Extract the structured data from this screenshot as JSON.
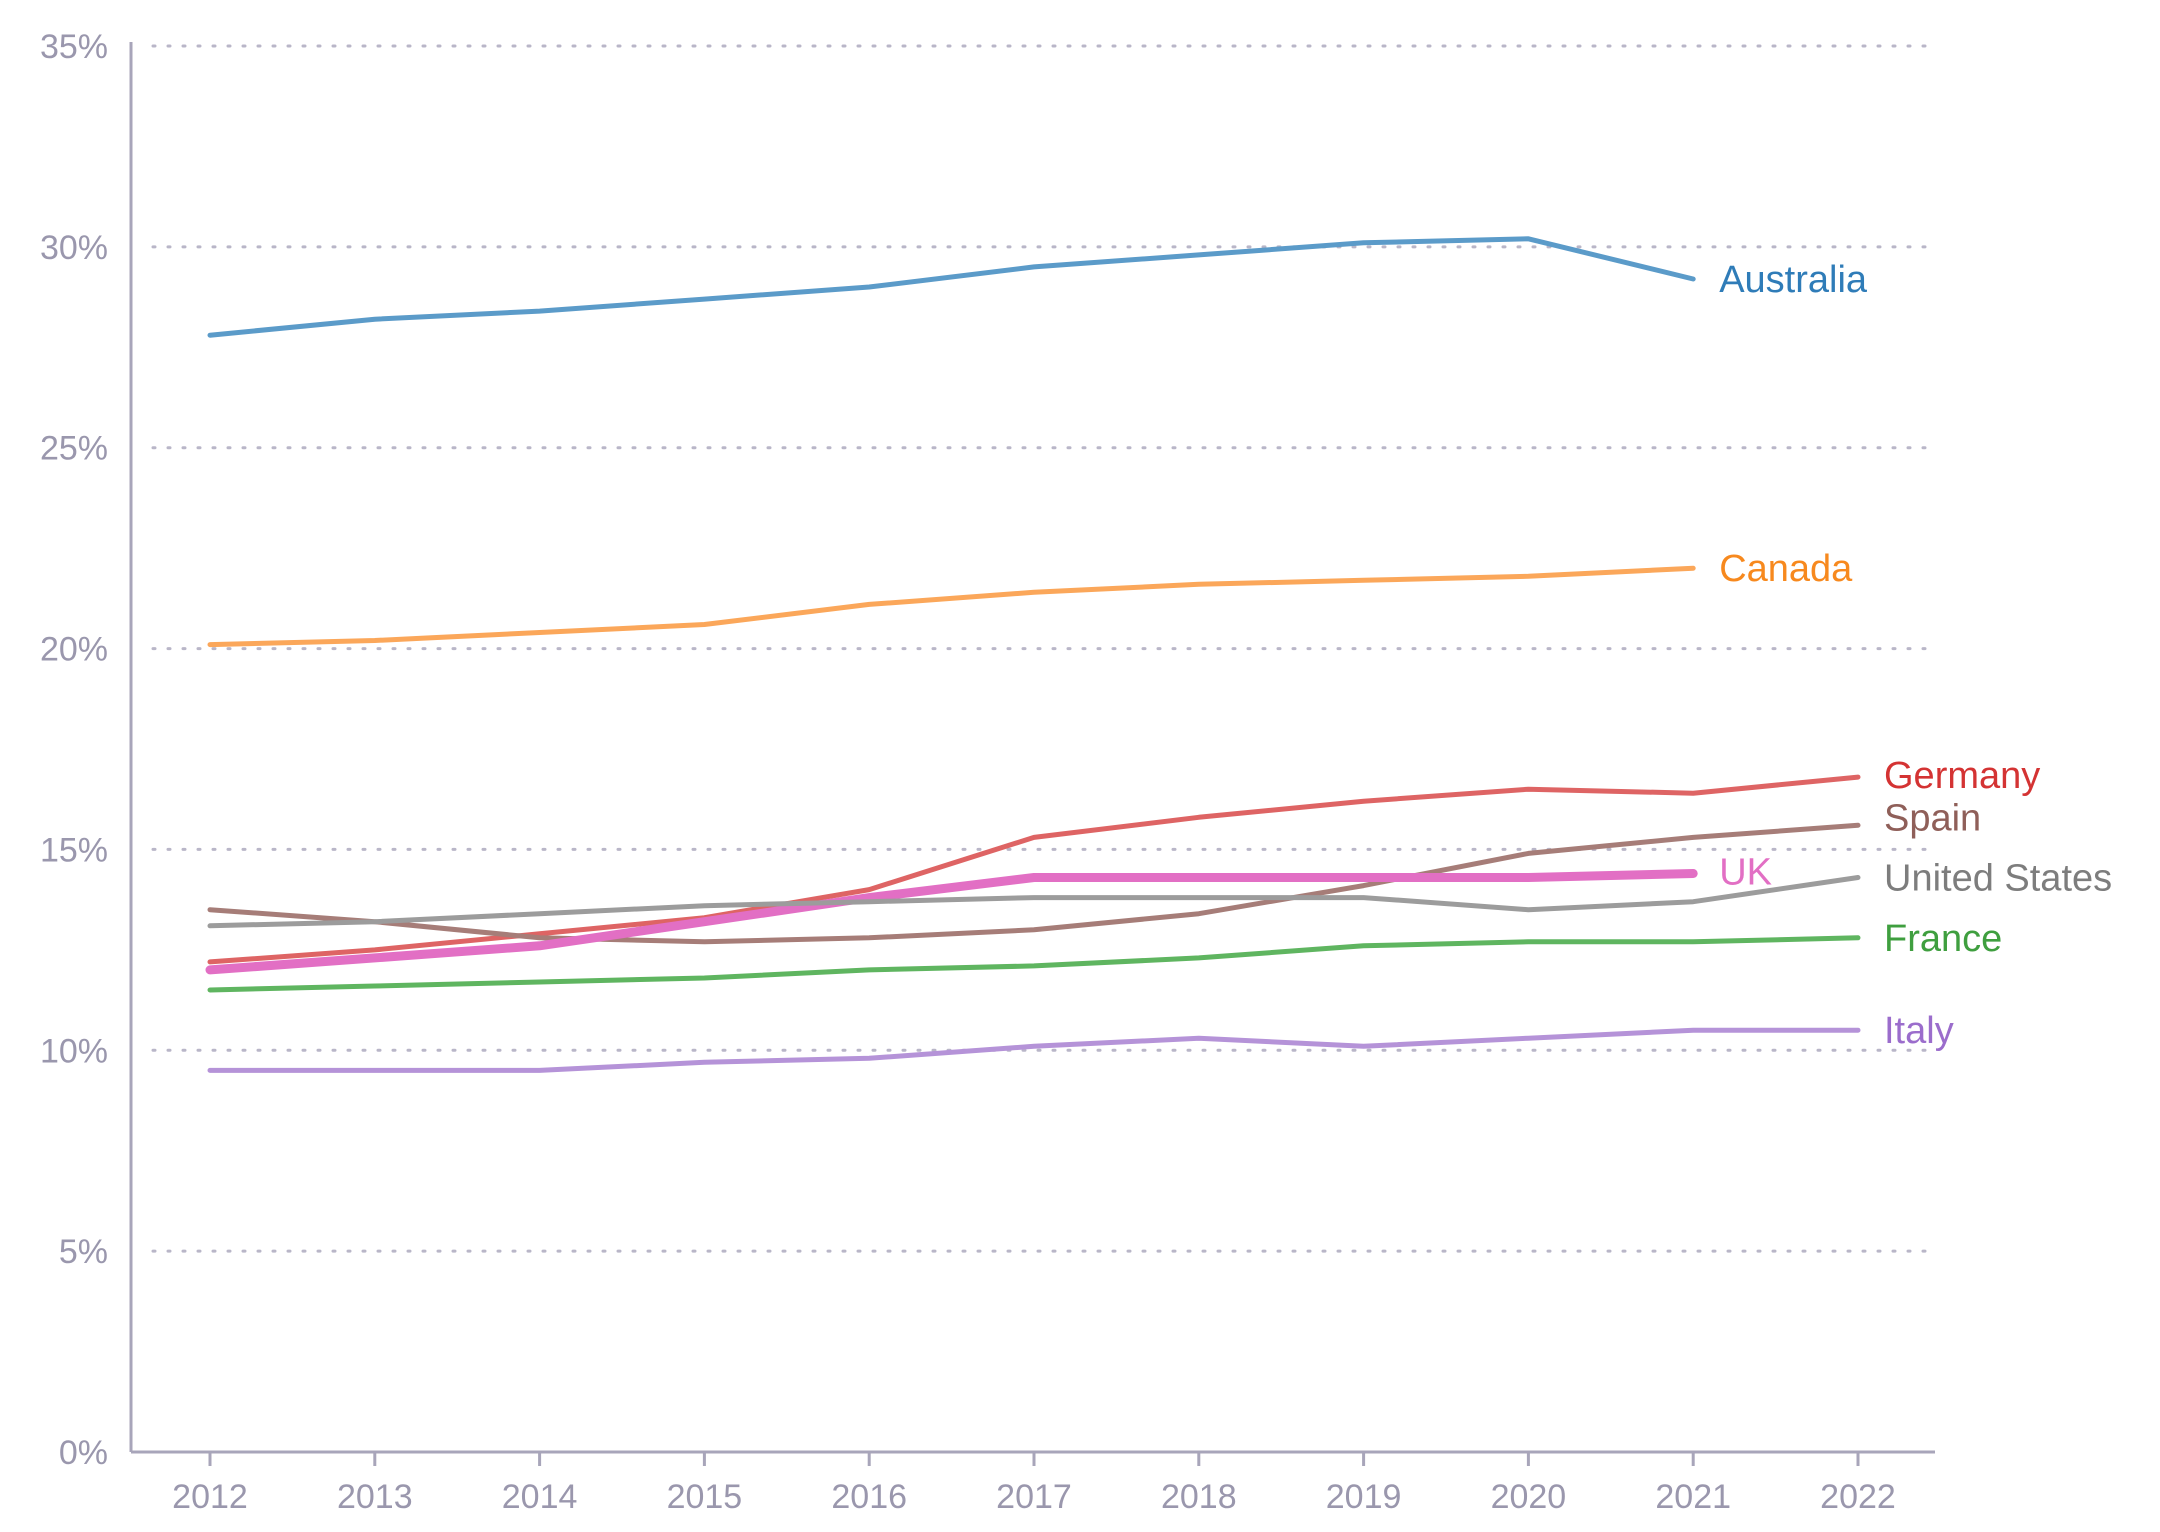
{
  "chart_data": {
    "type": "line",
    "title": "",
    "xlabel": "",
    "ylabel": "",
    "x": [
      2012,
      2013,
      2014,
      2015,
      2016,
      2017,
      2018,
      2019,
      2020,
      2021,
      2022
    ],
    "ylim": [
      0,
      35
    ],
    "yticks": [
      0,
      5,
      10,
      15,
      20,
      25,
      30,
      35
    ],
    "ytick_labels": [
      "0%",
      "5%",
      "10%",
      "15%",
      "20%",
      "25%",
      "30%",
      "35%"
    ],
    "xtick_labels": [
      "2012",
      "2013",
      "2014",
      "2015",
      "2016",
      "2017",
      "2018",
      "2019",
      "2020",
      "2021",
      "2022"
    ],
    "grid": true,
    "legend": "direct labels at line ends",
    "series": [
      {
        "name": "Australia",
        "color": "#5b9bc9",
        "label_color": "#2f7cb8",
        "values": [
          27.8,
          28.2,
          28.4,
          28.7,
          29.0,
          29.5,
          29.8,
          30.1,
          30.2,
          29.2,
          null
        ]
      },
      {
        "name": "Canada",
        "color": "#fba75a",
        "label_color": "#f7891e",
        "values": [
          20.1,
          20.2,
          20.4,
          20.6,
          21.1,
          21.4,
          21.6,
          21.7,
          21.8,
          22.0,
          null
        ]
      },
      {
        "name": "Germany",
        "color": "#de6464",
        "label_color": "#d43333",
        "values": [
          12.2,
          12.5,
          12.9,
          13.3,
          14.0,
          15.3,
          15.8,
          16.2,
          16.5,
          16.4,
          16.8
        ]
      },
      {
        "name": "Spain",
        "color": "#a67d78",
        "label_color": "#8f5f59",
        "values": [
          13.5,
          13.2,
          12.8,
          12.7,
          12.8,
          13.0,
          13.4,
          14.1,
          14.9,
          15.3,
          15.6
        ]
      },
      {
        "name": "UK",
        "color": "#e26fc4",
        "label_color": "#e26fc4",
        "values": [
          12.0,
          12.3,
          12.6,
          13.2,
          13.8,
          14.3,
          14.3,
          14.3,
          14.3,
          14.4,
          null
        ]
      },
      {
        "name": "United States",
        "color": "#9c9c9c",
        "label_color": "#7d7d7d",
        "values": [
          13.1,
          13.2,
          13.4,
          13.6,
          13.7,
          13.8,
          13.8,
          13.8,
          13.5,
          13.7,
          14.3
        ]
      },
      {
        "name": "France",
        "color": "#5fb560",
        "label_color": "#3f9f3f",
        "values": [
          11.5,
          11.6,
          11.7,
          11.8,
          12.0,
          12.1,
          12.3,
          12.6,
          12.7,
          12.7,
          12.8
        ]
      },
      {
        "name": "Italy",
        "color": "#b593d8",
        "label_color": "#9b6dcc",
        "values": [
          9.5,
          9.5,
          9.5,
          9.7,
          9.8,
          10.1,
          10.3,
          10.1,
          10.3,
          10.5,
          10.5
        ]
      }
    ]
  }
}
